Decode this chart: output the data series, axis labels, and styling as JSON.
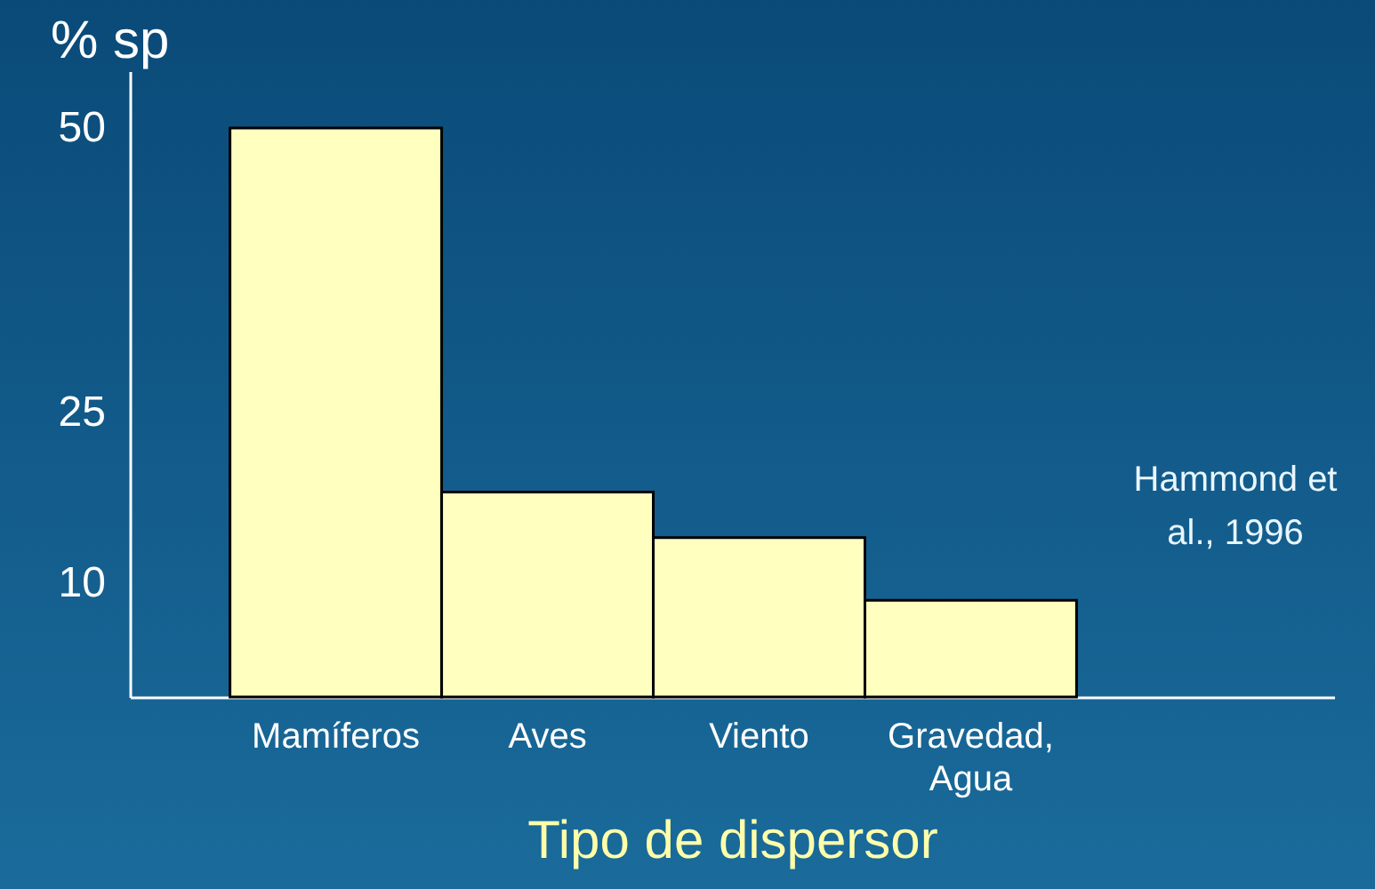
{
  "chart_data": {
    "type": "bar",
    "xlabel": "Tipo de dispersor",
    "ylabel": "% sp",
    "categories": [
      "Mamíferos",
      "Aves",
      "Viento",
      "Gravedad, Agua"
    ],
    "values": [
      50,
      18,
      14,
      8.5
    ],
    "color": "#ffffc0",
    "ylim": [
      0,
      55
    ],
    "yticks": [
      10,
      25,
      50
    ],
    "grid": false,
    "annotations": [
      "Hammond et al., 1996"
    ]
  }
}
